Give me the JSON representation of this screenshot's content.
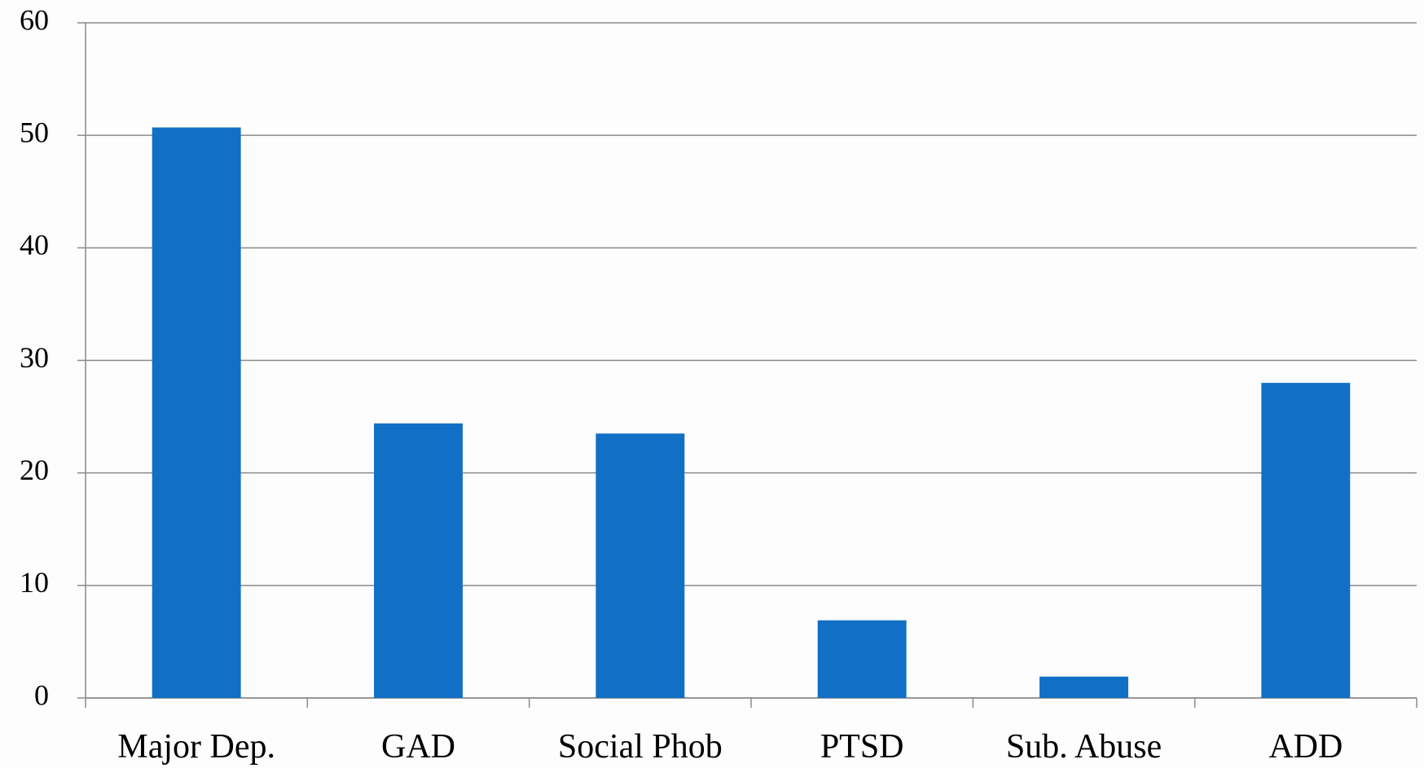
{
  "chart_data": {
    "type": "bar",
    "categories": [
      "Major Dep.",
      "GAD",
      "Social Phob",
      "PTSD",
      "Sub. Abuse",
      "ADD"
    ],
    "values": [
      50.7,
      24.4,
      23.5,
      6.9,
      1.9,
      28.0
    ],
    "color": "#1170c6",
    "ylim": [
      0,
      60
    ],
    "yticks": [
      0,
      10,
      20,
      30,
      40,
      50,
      60
    ],
    "grid": true
  }
}
